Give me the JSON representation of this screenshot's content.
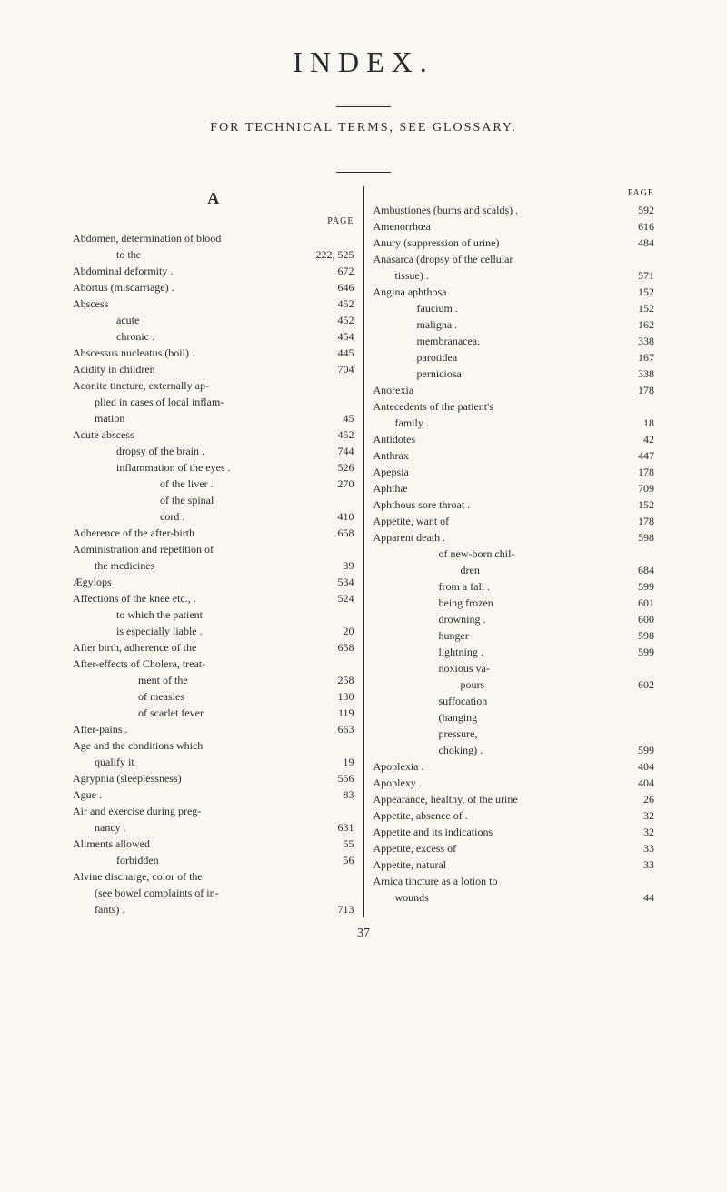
{
  "title": "INDEX.",
  "subtitle": "FOR TECHNICAL TERMS, SEE GLOSSARY.",
  "sectionLetter": "A",
  "pageLabel": "PAGE",
  "footer": "37",
  "leftColumn": {
    "entries": [
      {
        "text": "Abdomen, determination of blood",
        "page": "",
        "indent": 0
      },
      {
        "text": "to the",
        "page": "222, 525",
        "indent": 2
      },
      {
        "text": "Abdominal deformity .",
        "page": "672",
        "indent": 0
      },
      {
        "text": "Abortus (miscarriage) .",
        "page": "646",
        "indent": 0
      },
      {
        "text": "Abscess",
        "page": "452",
        "indent": 0
      },
      {
        "text": "acute",
        "page": "452",
        "indent": 2
      },
      {
        "text": "chronic .",
        "page": "454",
        "indent": 2
      },
      {
        "text": "Abscessus nucleatus (boil) .",
        "page": "445",
        "indent": 0
      },
      {
        "text": "Acidity in children",
        "page": "704",
        "indent": 0
      },
      {
        "text": "Aconite tincture, externally ap-",
        "page": "",
        "indent": 0
      },
      {
        "text": "plied in cases of local inflam-",
        "page": "",
        "indent": 1
      },
      {
        "text": "mation",
        "page": "45",
        "indent": 1
      },
      {
        "text": "Acute abscess",
        "page": "452",
        "indent": 0
      },
      {
        "text": "dropsy of the brain .",
        "page": "744",
        "indent": 2
      },
      {
        "text": "inflammation of the eyes .",
        "page": "526",
        "indent": 2
      },
      {
        "text": "of the liver .",
        "page": "270",
        "indent": 4
      },
      {
        "text": "of the spinal",
        "page": "",
        "indent": 4
      },
      {
        "text": "cord .",
        "page": "410",
        "indent": 4
      },
      {
        "text": "Adherence of the after-birth",
        "page": "658",
        "indent": 0
      },
      {
        "text": "Administration and repetition of",
        "page": "",
        "indent": 0
      },
      {
        "text": "the medicines",
        "page": "39",
        "indent": 1
      },
      {
        "text": "Ægylops",
        "page": "534",
        "indent": 0
      },
      {
        "text": "Affections of the knee etc., .",
        "page": "524",
        "indent": 0
      },
      {
        "text": "to which the patient",
        "page": "",
        "indent": 2
      },
      {
        "text": "is especially liable .",
        "page": "20",
        "indent": 2
      },
      {
        "text": "After birth, adherence of the",
        "page": "658",
        "indent": 0
      },
      {
        "text": "After-effects of Cholera, treat-",
        "page": "",
        "indent": 0
      },
      {
        "text": "ment of the",
        "page": "258",
        "indent": 3
      },
      {
        "text": "of measles",
        "page": "130",
        "indent": 3
      },
      {
        "text": "of scarlet fever",
        "page": "119",
        "indent": 3
      },
      {
        "text": "After-pains .",
        "page": "663",
        "indent": 0
      },
      {
        "text": "Age and the conditions which",
        "page": "",
        "indent": 0
      },
      {
        "text": "qualify it",
        "page": "19",
        "indent": 1
      },
      {
        "text": "Agrypnia (sleeplessness)",
        "page": "556",
        "indent": 0
      },
      {
        "text": "Ague .",
        "page": "83",
        "indent": 0
      },
      {
        "text": "Air and exercise during preg-",
        "page": "",
        "indent": 0
      },
      {
        "text": "nancy .",
        "page": "631",
        "indent": 1
      },
      {
        "text": "Aliments allowed",
        "page": "55",
        "indent": 0
      },
      {
        "text": "forbidden",
        "page": "56",
        "indent": 2
      },
      {
        "text": "Alvine discharge, color of the",
        "page": "",
        "indent": 0
      },
      {
        "text": "(see bowel complaints of in-",
        "page": "",
        "indent": 1
      },
      {
        "text": "fants) .",
        "page": "713",
        "indent": 1
      }
    ]
  },
  "rightColumn": {
    "entries": [
      {
        "text": "Ambustiones (burns and scalds) .",
        "page": "592",
        "indent": 0
      },
      {
        "text": "Amenorrhœa",
        "page": "616",
        "indent": 0
      },
      {
        "text": "Anury (suppression of urine)",
        "page": "484",
        "indent": 0
      },
      {
        "text": "Anasarca (dropsy of the cellular",
        "page": "",
        "indent": 0
      },
      {
        "text": "tissue) .",
        "page": "571",
        "indent": 1
      },
      {
        "text": "Angina aphthosa",
        "page": "152",
        "indent": 0
      },
      {
        "text": "faucium .",
        "page": "152",
        "indent": 2
      },
      {
        "text": "maligna .",
        "page": "162",
        "indent": 2
      },
      {
        "text": "membranacea.",
        "page": "338",
        "indent": 2
      },
      {
        "text": "parotidea",
        "page": "167",
        "indent": 2
      },
      {
        "text": "perniciosa",
        "page": "338",
        "indent": 2
      },
      {
        "text": "Anorexia",
        "page": "178",
        "indent": 0
      },
      {
        "text": "Antecedents of the patient's",
        "page": "",
        "indent": 0
      },
      {
        "text": "family .",
        "page": "18",
        "indent": 1
      },
      {
        "text": "Antidotes",
        "page": "42",
        "indent": 0
      },
      {
        "text": "Anthrax",
        "page": "447",
        "indent": 0
      },
      {
        "text": "Apepsia",
        "page": "178",
        "indent": 0
      },
      {
        "text": "Aphthæ",
        "page": "709",
        "indent": 0
      },
      {
        "text": "Aphthous sore throat .",
        "page": "152",
        "indent": 0
      },
      {
        "text": "Appetite, want of",
        "page": "178",
        "indent": 0
      },
      {
        "text": "Apparent death .",
        "page": "598",
        "indent": 0
      },
      {
        "text": "of new-born chil-",
        "page": "",
        "indent": 3
      },
      {
        "text": "dren",
        "page": "684",
        "indent": 4
      },
      {
        "text": "from a fall .",
        "page": "599",
        "indent": 3
      },
      {
        "text": "being frozen",
        "page": "601",
        "indent": 3
      },
      {
        "text": "drowning .",
        "page": "600",
        "indent": 3
      },
      {
        "text": "hunger",
        "page": "598",
        "indent": 3
      },
      {
        "text": "lightning .",
        "page": "599",
        "indent": 3
      },
      {
        "text": "noxious va-",
        "page": "",
        "indent": 3
      },
      {
        "text": "pours",
        "page": "602",
        "indent": 4
      },
      {
        "text": "suffocation",
        "page": "",
        "indent": 3
      },
      {
        "text": "(hanging",
        "page": "",
        "indent": 3
      },
      {
        "text": "pressure,",
        "page": "",
        "indent": 3
      },
      {
        "text": "choking) .",
        "page": "599",
        "indent": 3
      },
      {
        "text": "Apoplexia .",
        "page": "404",
        "indent": 0
      },
      {
        "text": "Apoplexy .",
        "page": "404",
        "indent": 0
      },
      {
        "text": "Appearance, healthy, of the urine",
        "page": "26",
        "indent": 0
      },
      {
        "text": "Appetite, absence of .",
        "page": "32",
        "indent": 0
      },
      {
        "text": "Appetite and its indications",
        "page": "32",
        "indent": 0
      },
      {
        "text": "Appetite, excess of",
        "page": "33",
        "indent": 0
      },
      {
        "text": "Appetite, natural",
        "page": "33",
        "indent": 0
      },
      {
        "text": "Arnica tincture as a lotion to",
        "page": "",
        "indent": 0
      },
      {
        "text": "wounds",
        "page": "44",
        "indent": 1
      }
    ]
  }
}
